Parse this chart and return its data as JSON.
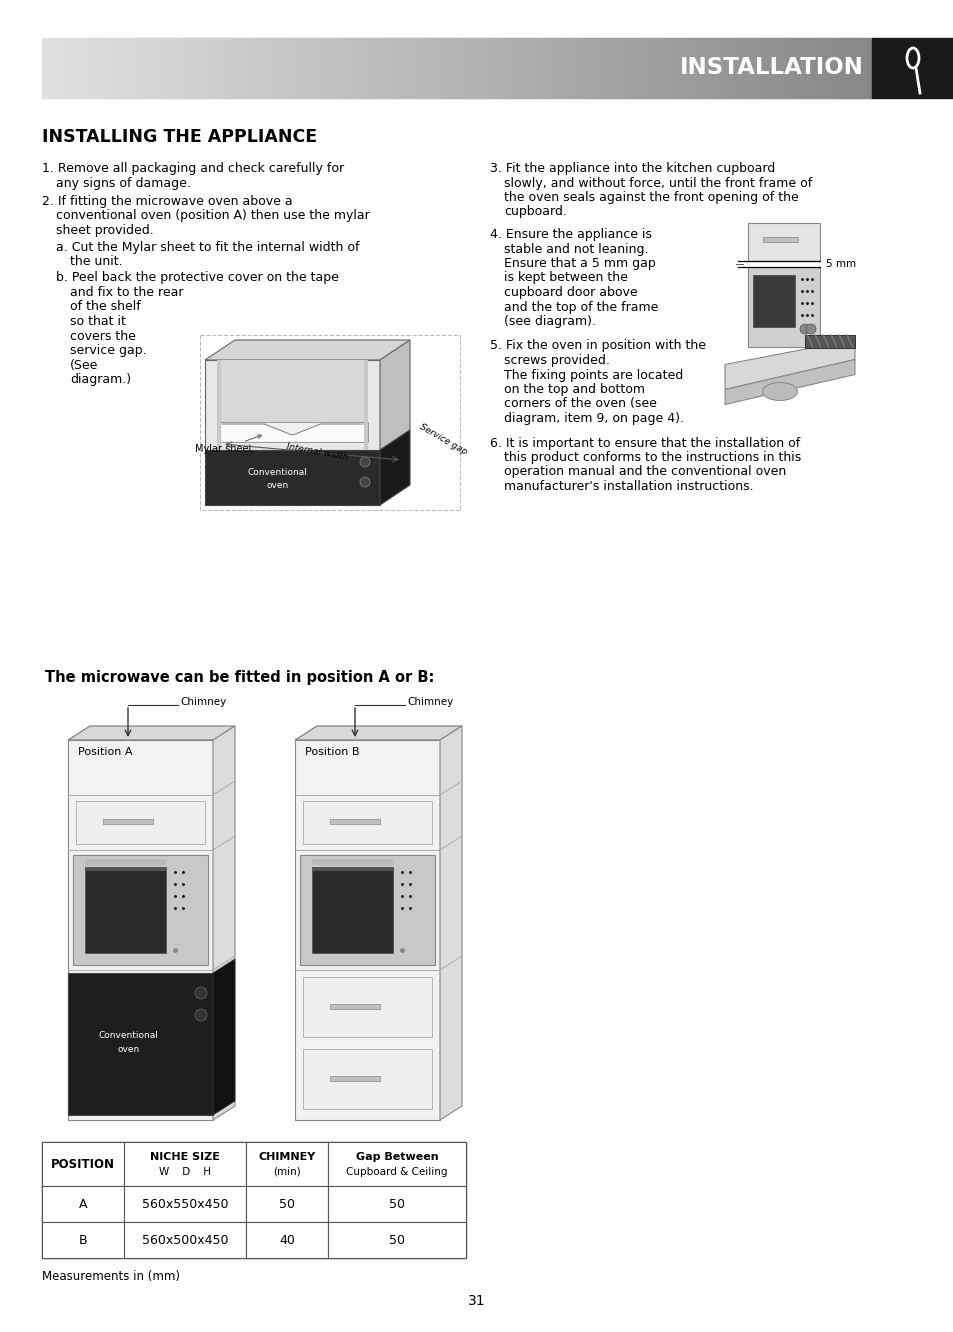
{
  "bg_color": "#ffffff",
  "header_text": "INSTALLATION",
  "header_text_color": "#ffffff",
  "header_dark_box_color": "#1a1a1a",
  "section_title": "INSTALLING THE APPLIANCE",
  "page_number": "31",
  "body_fontsize": 9.0,
  "measurements_note": "Measurements in (mm)",
  "position_subtitle": "The microwave can be fitted in position A or B:",
  "table_headers_line1": [
    "POSITION",
    "NICHE SIZE",
    "CHIMNEY",
    "Gap Between"
  ],
  "table_headers_line2": [
    "",
    "W    D    H",
    "(min)",
    "Cupboard & Ceiling"
  ],
  "table_rows": [
    [
      "A",
      "560x550x450",
      "50",
      "50"
    ],
    [
      "B",
      "560x500x450",
      "40",
      "50"
    ]
  ]
}
